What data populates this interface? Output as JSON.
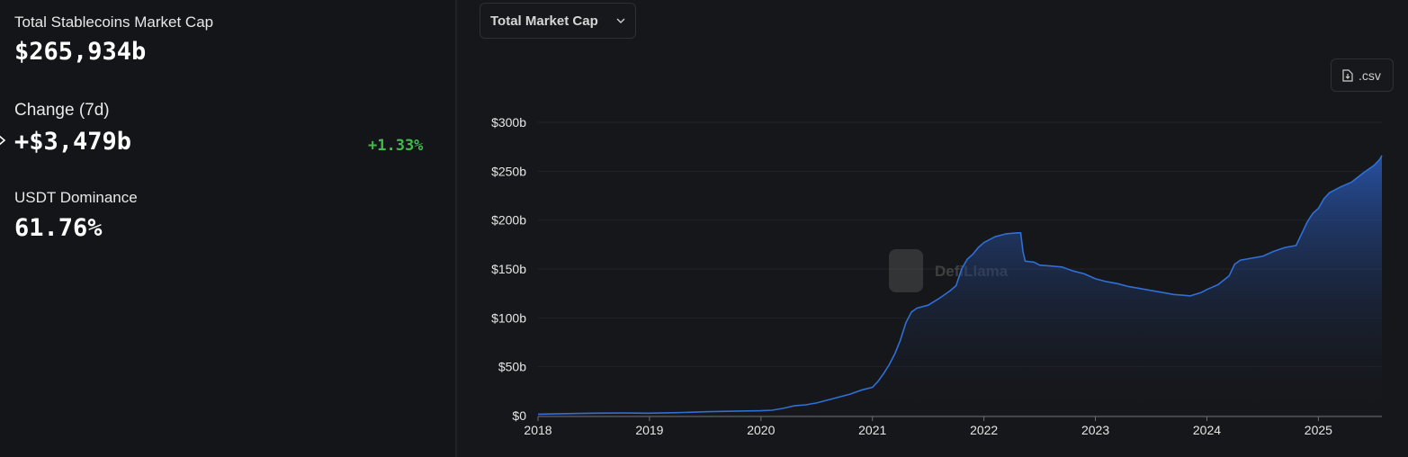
{
  "stats": {
    "market_cap_label": "Total Stablecoins Market Cap",
    "market_cap_value": "$265,934b",
    "change_label": "Change (7d)",
    "change_value": "+$3,479b",
    "change_pct": "+1.33%",
    "dominance_label": "USDT Dominance",
    "dominance_value": "61.76%"
  },
  "controls": {
    "dropdown_value": "Total Market Cap",
    "csv_label": ".csv"
  },
  "watermark": "DefiLlama",
  "colors": {
    "background": "#141518",
    "line": "#2f6fd6",
    "positive": "#3fba4c"
  },
  "chart_data": {
    "type": "area",
    "title": "",
    "xlabel": "",
    "ylabel": "",
    "x_ticks": [
      "2018",
      "2019",
      "2020",
      "2021",
      "2022",
      "2023",
      "2024",
      "2025"
    ],
    "y_ticks": [
      "$0",
      "$50b",
      "$100b",
      "$150b",
      "$200b",
      "$250b",
      "$300b"
    ],
    "ylim": [
      0,
      300
    ],
    "xlim": [
      2018.0,
      2025.57
    ],
    "grid": true,
    "series": [
      {
        "values": [
          [
            2018.0,
            1.5
          ],
          [
            2018.25,
            2
          ],
          [
            2018.5,
            2.5
          ],
          [
            2018.75,
            2.7
          ],
          [
            2019.0,
            2.5
          ],
          [
            2019.25,
            3
          ],
          [
            2019.5,
            4
          ],
          [
            2019.75,
            4.5
          ],
          [
            2020.0,
            5
          ],
          [
            2020.1,
            5.5
          ],
          [
            2020.2,
            7.5
          ],
          [
            2020.3,
            10
          ],
          [
            2020.4,
            11
          ],
          [
            2020.5,
            13
          ],
          [
            2020.6,
            16
          ],
          [
            2020.7,
            19
          ],
          [
            2020.8,
            22
          ],
          [
            2020.9,
            26
          ],
          [
            2021.0,
            29
          ],
          [
            2021.05,
            35
          ],
          [
            2021.1,
            43
          ],
          [
            2021.15,
            52
          ],
          [
            2021.2,
            63
          ],
          [
            2021.25,
            77
          ],
          [
            2021.3,
            95
          ],
          [
            2021.35,
            106
          ],
          [
            2021.4,
            110
          ],
          [
            2021.5,
            113
          ],
          [
            2021.6,
            120
          ],
          [
            2021.7,
            128
          ],
          [
            2021.75,
            133
          ],
          [
            2021.8,
            150
          ],
          [
            2021.85,
            160
          ],
          [
            2021.9,
            165
          ],
          [
            2021.95,
            172
          ],
          [
            2022.0,
            177
          ],
          [
            2022.1,
            183
          ],
          [
            2022.2,
            186
          ],
          [
            2022.3,
            187
          ],
          [
            2022.33,
            187
          ],
          [
            2022.35,
            168
          ],
          [
            2022.37,
            158
          ],
          [
            2022.45,
            157
          ],
          [
            2022.5,
            154
          ],
          [
            2022.6,
            153
          ],
          [
            2022.7,
            152
          ],
          [
            2022.8,
            148
          ],
          [
            2022.9,
            145
          ],
          [
            2023.0,
            140
          ],
          [
            2023.1,
            137
          ],
          [
            2023.2,
            135
          ],
          [
            2023.3,
            132
          ],
          [
            2023.4,
            130
          ],
          [
            2023.5,
            128
          ],
          [
            2023.6,
            126
          ],
          [
            2023.7,
            124
          ],
          [
            2023.8,
            123
          ],
          [
            2023.85,
            122.5
          ],
          [
            2023.95,
            126
          ],
          [
            2024.0,
            129
          ],
          [
            2024.1,
            134
          ],
          [
            2024.2,
            143
          ],
          [
            2024.25,
            155
          ],
          [
            2024.3,
            159
          ],
          [
            2024.4,
            161
          ],
          [
            2024.5,
            163
          ],
          [
            2024.6,
            168
          ],
          [
            2024.7,
            172
          ],
          [
            2024.8,
            174
          ],
          [
            2024.85,
            186
          ],
          [
            2024.9,
            198
          ],
          [
            2024.95,
            207
          ],
          [
            2025.0,
            212
          ],
          [
            2025.05,
            222
          ],
          [
            2025.1,
            228
          ],
          [
            2025.2,
            234
          ],
          [
            2025.3,
            239
          ],
          [
            2025.4,
            248
          ],
          [
            2025.45,
            252
          ],
          [
            2025.5,
            256
          ],
          [
            2025.55,
            262
          ],
          [
            2025.57,
            266
          ]
        ]
      }
    ]
  }
}
